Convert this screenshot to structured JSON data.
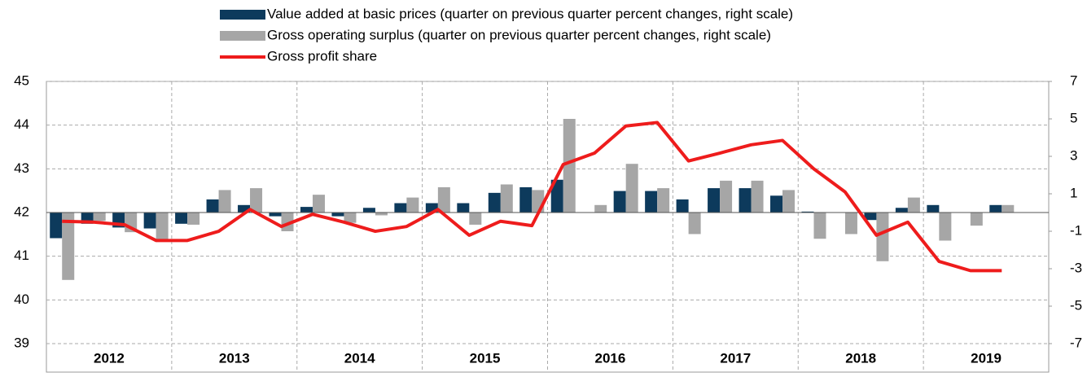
{
  "chart_data": {
    "type": "bar-line",
    "categories": [
      null,
      null,
      null,
      null,
      null,
      null,
      null,
      null,
      null,
      null,
      null,
      null,
      null,
      null,
      null,
      null,
      null,
      null,
      null,
      null,
      null,
      null,
      null,
      null,
      null,
      null,
      null,
      null,
      null,
      null,
      null,
      null
    ],
    "group_labels": [
      "2012",
      "2013",
      "2014",
      "2015",
      "2016",
      "2017",
      "2018",
      "2019"
    ],
    "series": [
      {
        "name": "Value added at basic prices (quarter on previous quarter percent changes, right scale)",
        "type": "bar",
        "axis": "y2",
        "color": "#0d3a5c",
        "values": [
          -1.37,
          -0.6,
          -0.8,
          -0.85,
          -0.6,
          0.7,
          0.4,
          -0.2,
          0.3,
          -0.2,
          0.25,
          0.5,
          0.5,
          0.5,
          1.05,
          1.35,
          1.75,
          0,
          1.15,
          1.15,
          0.7,
          1.3,
          1.3,
          0.9,
          0.05,
          0,
          -0.4,
          0.25,
          0.4,
          0,
          0.4,
          null
        ]
      },
      {
        "name": "Gross operating surplus (quarter on previous quarter percent changes, right scale)",
        "type": "bar",
        "axis": "y2",
        "color": "#a6a6a6",
        "values": [
          -3.6,
          -0.45,
          -1.05,
          -1.5,
          -0.65,
          1.2,
          1.3,
          -1.0,
          0.95,
          -0.55,
          -0.15,
          0.8,
          1.35,
          -0.65,
          1.5,
          1.2,
          5.0,
          0.4,
          2.6,
          1.3,
          -1.15,
          1.7,
          1.7,
          1.2,
          -1.4,
          -1.15,
          -2.6,
          0.8,
          -1.5,
          -0.7,
          0.4,
          null
        ]
      },
      {
        "name": "Gross profit share",
        "type": "line",
        "color": "#ee1c1c",
        "values": [
          41.8,
          41.78,
          41.72,
          41.36,
          41.36,
          41.57,
          42.07,
          41.68,
          41.96,
          41.78,
          41.57,
          41.68,
          42.07,
          41.48,
          41.8,
          41.7,
          43.1,
          43.36,
          43.98,
          44.06,
          43.18,
          43.36,
          43.55,
          43.65,
          43.0,
          42.47,
          41.48,
          41.78,
          40.88,
          40.67,
          40.67,
          null
        ]
      }
    ],
    "ylim": [
      39,
      45
    ],
    "yticks": [
      39,
      40,
      41,
      42,
      43,
      44,
      45
    ],
    "y2lim": [
      -7,
      7
    ],
    "y2ticks": [
      -7,
      -5,
      -3,
      -1,
      1,
      3,
      5,
      7
    ],
    "grid": true
  }
}
